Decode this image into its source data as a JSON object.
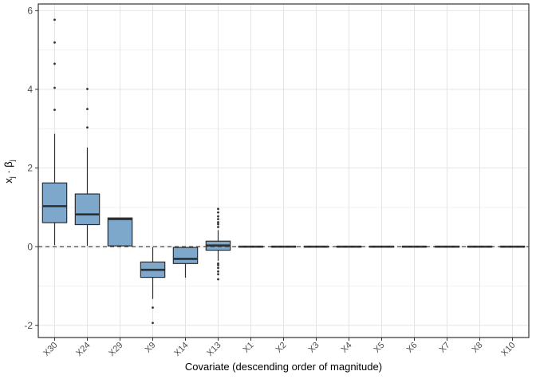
{
  "chart_data": {
    "type": "boxplot",
    "title": "",
    "xlabel": "Covariate (descending order of magnitude)",
    "ylabel": "x_j · β_j",
    "ylabel_parts": {
      "var": "x",
      "var_sub": "j",
      "dot": " · ",
      "coef": "β",
      "coef_sub": "j"
    },
    "ylim": [
      -2.31,
      6.17
    ],
    "yticks_major": [
      -2,
      0,
      2,
      4,
      6
    ],
    "ytick_labels": [
      "-2",
      "0",
      "2",
      "4",
      "6"
    ],
    "yticks_minor": [
      -1,
      1,
      3,
      5
    ],
    "grid": true,
    "legend": "none",
    "reference_line": {
      "y": 0,
      "style": "dashed"
    },
    "categories": [
      "X30",
      "X24",
      "X29",
      "X9",
      "X14",
      "X13",
      "X1",
      "X2",
      "X3",
      "X4",
      "X5",
      "X6",
      "X7",
      "X8",
      "X10"
    ],
    "boxes": [
      {
        "label": "X30",
        "q1": 0.61,
        "median": 1.03,
        "q3": 1.62,
        "whisker_low": 0.04,
        "whisker_high": 2.87,
        "outliers": [
          3.48,
          4.04,
          4.65,
          5.19,
          5.77
        ]
      },
      {
        "label": "X24",
        "q1": 0.56,
        "median": 0.82,
        "q3": 1.34,
        "whisker_low": 0.02,
        "whisker_high": 2.52,
        "outliers": [
          3.03,
          3.5,
          4.01
        ]
      },
      {
        "label": "X29",
        "q1": 0.02,
        "median": 0.7,
        "q3": 0.73,
        "whisker_low": 0.02,
        "whisker_high": 0.73,
        "outliers": []
      },
      {
        "label": "X9",
        "q1": -0.78,
        "median": -0.59,
        "q3": -0.39,
        "whisker_low": -1.33,
        "whisker_high": -0.01,
        "outliers": [
          -1.55,
          -1.94
        ]
      },
      {
        "label": "X14",
        "q1": -0.43,
        "median": -0.31,
        "q3": -0.02,
        "whisker_low": -0.79,
        "whisker_high": -0.02,
        "outliers": []
      },
      {
        "label": "X13",
        "q1": -0.09,
        "median": 0.03,
        "q3": 0.14,
        "whisker_low": -0.36,
        "whisker_high": 0.42,
        "outliers": [
          0.5,
          0.57,
          0.62,
          0.7,
          0.77,
          0.87,
          0.96,
          -0.43,
          -0.47,
          -0.54,
          -0.63,
          -0.7,
          -0.83
        ]
      },
      {
        "label": "X1",
        "q1": -0.012,
        "median": 0,
        "q3": 0.012,
        "whisker_low": -0.012,
        "whisker_high": 0.012,
        "outliers": []
      },
      {
        "label": "X2",
        "q1": -0.012,
        "median": 0,
        "q3": 0.012,
        "whisker_low": -0.012,
        "whisker_high": 0.012,
        "outliers": []
      },
      {
        "label": "X3",
        "q1": -0.012,
        "median": 0,
        "q3": 0.012,
        "whisker_low": -0.012,
        "whisker_high": 0.012,
        "outliers": []
      },
      {
        "label": "X4",
        "q1": -0.012,
        "median": 0,
        "q3": 0.012,
        "whisker_low": -0.012,
        "whisker_high": 0.012,
        "outliers": []
      },
      {
        "label": "X5",
        "q1": -0.012,
        "median": 0,
        "q3": 0.012,
        "whisker_low": -0.012,
        "whisker_high": 0.012,
        "outliers": []
      },
      {
        "label": "X6",
        "q1": -0.012,
        "median": 0,
        "q3": 0.012,
        "whisker_low": -0.012,
        "whisker_high": 0.012,
        "outliers": []
      },
      {
        "label": "X7",
        "q1": -0.012,
        "median": 0,
        "q3": 0.012,
        "whisker_low": -0.012,
        "whisker_high": 0.012,
        "outliers": []
      },
      {
        "label": "X8",
        "q1": -0.012,
        "median": 0,
        "q3": 0.012,
        "whisker_low": -0.012,
        "whisker_high": 0.012,
        "outliers": []
      },
      {
        "label": "X10",
        "q1": -0.012,
        "median": 0,
        "q3": 0.012,
        "whisker_low": -0.012,
        "whisker_high": 0.012,
        "outliers": []
      }
    ],
    "colors": {
      "box_fill": "#7da7cb",
      "box_border": "#2e2e2e",
      "median": "#2e2e2e",
      "outlier": "#333333",
      "grid_major": "#e4e4e4",
      "grid_minor": "#f0f0f0",
      "axis_text": "#4d4d4d",
      "panel_border": "#333333",
      "reference_line": "#404040",
      "background": "#ffffff"
    }
  }
}
